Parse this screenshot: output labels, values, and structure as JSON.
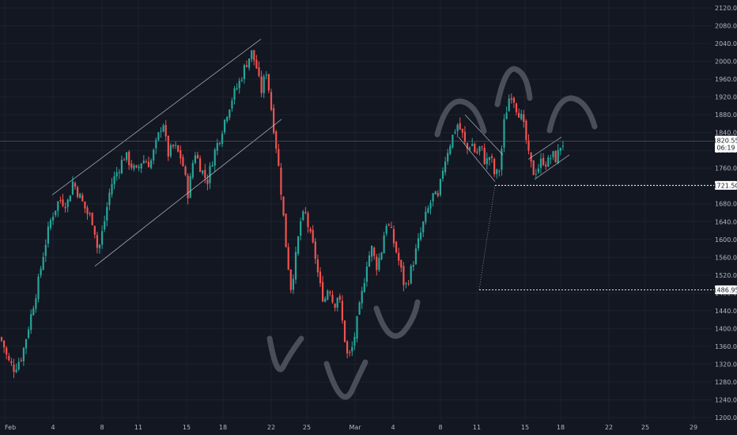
{
  "chart_data": {
    "type": "candlestick",
    "y_axis": {
      "position": "right",
      "range": [
        1190,
        2130
      ],
      "ticks": [
        "2120.00",
        "2080.00",
        "2040.00",
        "2000.00",
        "1960.00",
        "1920.00",
        "1880.00",
        "1840.00",
        "1800.00",
        "1760.00",
        "1720.00",
        "1680.00",
        "1640.00",
        "1600.00",
        "1560.00",
        "1520.00",
        "1480.00",
        "1440.00",
        "1400.00",
        "1360.00",
        "1320.00",
        "1280.00",
        "1240.00",
        "1200.00"
      ]
    },
    "x_axis": {
      "labels": [
        "Feb",
        "4",
        "8",
        "11",
        "15",
        "18",
        "22",
        "25",
        "Mar",
        "4",
        "8",
        "11",
        "15",
        "18",
        "22",
        "25",
        "29"
      ]
    },
    "grid": true,
    "price_badges": {
      "last": "1820.55",
      "last_sub": "06:19",
      "support": "1721.50",
      "target": "1486.95"
    },
    "colors": {
      "background": "#131722",
      "up": "#26a69a",
      "down": "#ef5350",
      "grid": "#1e222d",
      "axis_text": "#b2b5be",
      "annotation": "#4a4e5a",
      "channel_lines": "#d1d4dc"
    },
    "annotations": [
      "ascending-channel",
      "falling-flag",
      "rising-wedge",
      "inverse-head-and-shoulders-arcs",
      "head-and-shoulders-arcs",
      "target-projection"
    ],
    "series_path": [
      [
        0,
        1380
      ],
      [
        4,
        1366
      ],
      [
        10,
        1328
      ],
      [
        18,
        1310
      ],
      [
        28,
        1340
      ],
      [
        38,
        1420
      ],
      [
        48,
        1500
      ],
      [
        56,
        1580
      ],
      [
        65,
        1650
      ],
      [
        75,
        1690
      ],
      [
        85,
        1680
      ],
      [
        92,
        1730
      ],
      [
        100,
        1700
      ],
      [
        110,
        1660
      ],
      [
        118,
        1640
      ],
      [
        124,
        1570
      ],
      [
        132,
        1640
      ],
      [
        140,
        1720
      ],
      [
        150,
        1760
      ],
      [
        158,
        1790
      ],
      [
        165,
        1770
      ],
      [
        172,
        1750
      ],
      [
        180,
        1780
      ],
      [
        190,
        1770
      ],
      [
        200,
        1830
      ],
      [
        206,
        1870
      ],
      [
        212,
        1790
      ],
      [
        220,
        1810
      ],
      [
        230,
        1780
      ],
      [
        238,
        1700
      ],
      [
        246,
        1800
      ],
      [
        254,
        1760
      ],
      [
        262,
        1730
      ],
      [
        270,
        1790
      ],
      [
        278,
        1830
      ],
      [
        286,
        1880
      ],
      [
        294,
        1920
      ],
      [
        302,
        1950
      ],
      [
        310,
        1990
      ],
      [
        318,
        2020
      ],
      [
        324,
        1990
      ],
      [
        330,
        1930
      ],
      [
        337,
        1980
      ],
      [
        344,
        1880
      ],
      [
        350,
        1800
      ],
      [
        356,
        1700
      ],
      [
        362,
        1580
      ],
      [
        368,
        1490
      ],
      [
        374,
        1560
      ],
      [
        380,
        1640
      ],
      [
        386,
        1660
      ],
      [
        392,
        1610
      ],
      [
        398,
        1570
      ],
      [
        404,
        1500
      ],
      [
        410,
        1460
      ],
      [
        416,
        1500
      ],
      [
        422,
        1450
      ],
      [
        428,
        1480
      ],
      [
        434,
        1400
      ],
      [
        440,
        1330
      ],
      [
        446,
        1360
      ],
      [
        452,
        1420
      ],
      [
        458,
        1480
      ],
      [
        464,
        1550
      ],
      [
        470,
        1580
      ],
      [
        476,
        1540
      ],
      [
        482,
        1570
      ],
      [
        488,
        1640
      ],
      [
        494,
        1620
      ],
      [
        500,
        1580
      ],
      [
        506,
        1540
      ],
      [
        512,
        1490
      ],
      [
        518,
        1520
      ],
      [
        524,
        1560
      ],
      [
        530,
        1600
      ],
      [
        536,
        1640
      ],
      [
        542,
        1670
      ],
      [
        548,
        1700
      ],
      [
        554,
        1690
      ],
      [
        560,
        1760
      ],
      [
        566,
        1800
      ],
      [
        572,
        1830
      ],
      [
        578,
        1860
      ],
      [
        584,
        1840
      ],
      [
        590,
        1800
      ],
      [
        596,
        1820
      ],
      [
        602,
        1790
      ],
      [
        608,
        1810
      ],
      [
        614,
        1770
      ],
      [
        620,
        1790
      ],
      [
        626,
        1740
      ],
      [
        632,
        1760
      ],
      [
        638,
        1870
      ],
      [
        644,
        1920
      ],
      [
        648,
        1930
      ],
      [
        652,
        1900
      ],
      [
        658,
        1880
      ],
      [
        664,
        1840
      ],
      [
        668,
        1790
      ],
      [
        674,
        1750
      ],
      [
        680,
        1760
      ],
      [
        686,
        1780
      ],
      [
        692,
        1770
      ],
      [
        698,
        1790
      ],
      [
        704,
        1780
      ],
      [
        708,
        1810
      ],
      [
        714,
        1820
      ]
    ]
  }
}
